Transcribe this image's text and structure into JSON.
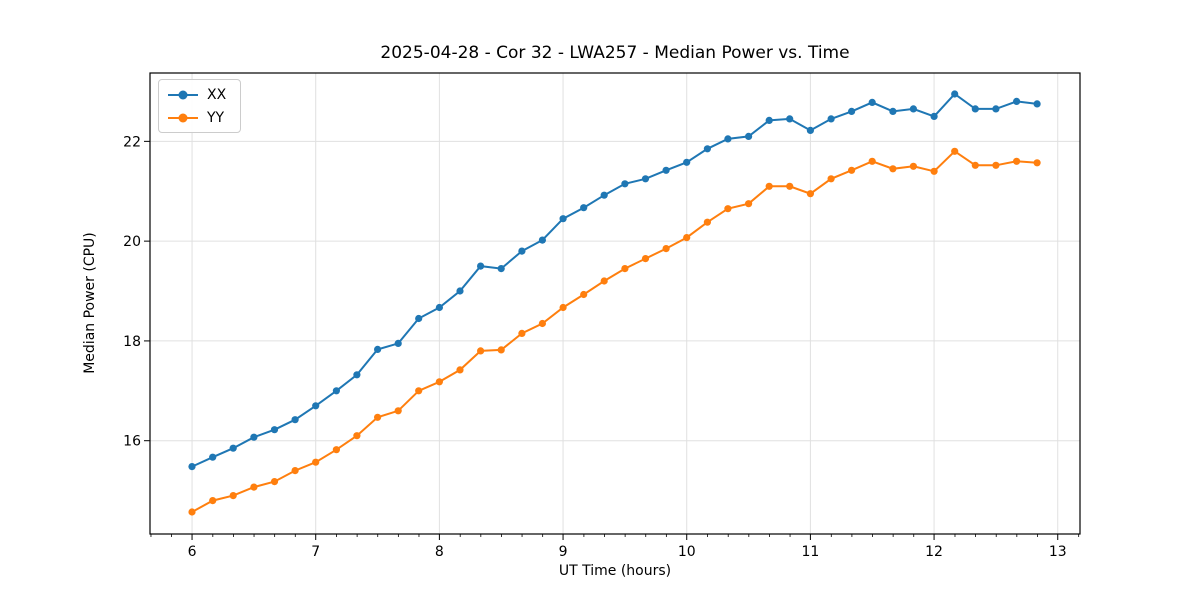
{
  "chart_data": {
    "type": "line",
    "title": "2025-04-28 - Cor 32 - LWA257 - Median Power vs. Time",
    "xlabel": "UT Time (hours)",
    "ylabel": "Median Power (CPU)",
    "xlim": [
      5.66,
      13.18
    ],
    "ylim": [
      14.13,
      23.37
    ],
    "xticks": [
      6,
      7,
      8,
      9,
      10,
      11,
      12,
      13
    ],
    "xtick_labels": [
      "6",
      "7",
      "8",
      "9",
      "10",
      "11",
      "12",
      "13"
    ],
    "yticks": [
      16,
      18,
      20,
      22
    ],
    "ytick_labels": [
      "16",
      "18",
      "20",
      "22"
    ],
    "x_minor_tick_step": 0.1667,
    "grid": "major",
    "grid_color": "#e0e0e0",
    "legend_position": "upper-left",
    "x": [
      6.0,
      6.167,
      6.333,
      6.5,
      6.667,
      6.833,
      7.0,
      7.167,
      7.333,
      7.5,
      7.667,
      7.833,
      8.0,
      8.167,
      8.333,
      8.5,
      8.667,
      8.833,
      9.0,
      9.167,
      9.333,
      9.5,
      9.667,
      9.833,
      10.0,
      10.167,
      10.333,
      10.5,
      10.667,
      10.833,
      11.0,
      11.167,
      11.333,
      11.5,
      11.667,
      11.833,
      12.0,
      12.167,
      12.333,
      12.5,
      12.667,
      12.833
    ],
    "series": [
      {
        "name": "XX",
        "color": "#1f77b4",
        "values": [
          15.48,
          15.67,
          15.85,
          16.07,
          16.22,
          16.42,
          16.7,
          17.0,
          17.32,
          17.83,
          17.95,
          18.45,
          18.67,
          19.0,
          19.5,
          19.45,
          19.8,
          20.02,
          20.45,
          20.67,
          20.92,
          21.15,
          21.25,
          21.42,
          21.58,
          21.85,
          22.05,
          22.1,
          22.42,
          22.45,
          22.22,
          22.45,
          22.6,
          22.78,
          22.6,
          22.65,
          22.5,
          22.95,
          22.65,
          22.65,
          22.8,
          22.75
        ]
      },
      {
        "name": "YY",
        "color": "#ff7f0e",
        "values": [
          14.57,
          14.8,
          14.9,
          15.07,
          15.18,
          15.4,
          15.57,
          15.82,
          16.1,
          16.47,
          16.6,
          17.0,
          17.18,
          17.42,
          17.8,
          17.82,
          18.15,
          18.35,
          18.67,
          18.93,
          19.2,
          19.45,
          19.65,
          19.85,
          20.07,
          20.38,
          20.65,
          20.75,
          21.1,
          21.1,
          20.95,
          21.25,
          21.42,
          21.6,
          21.45,
          21.5,
          21.4,
          21.8,
          21.52,
          21.52,
          21.6,
          21.57
        ]
      }
    ]
  }
}
